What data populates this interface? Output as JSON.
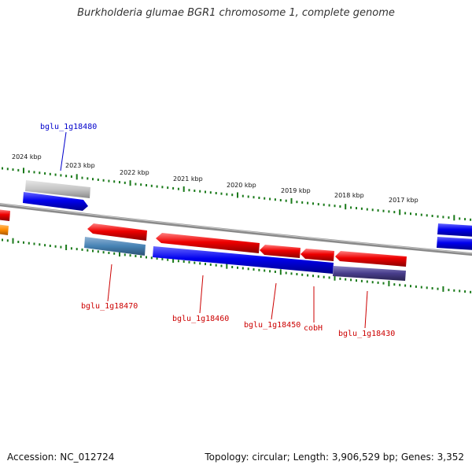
{
  "title": "Burkholderia glumae BGR1 chromosome 1, complete genome",
  "footer": {
    "accession": "Accession: NC_012724",
    "topology": "Topology: circular; Length: 3,906,529 bp; Genes: 3,352"
  },
  "scale_labels": [
    "2024 kbp",
    "2023 kbp",
    "2022 kbp",
    "2021 kbp",
    "2020 kbp",
    "2019 kbp",
    "2018 kbp",
    "2017 kbp"
  ],
  "gene_labels": [
    {
      "text": "bglu_1g18480",
      "color": "#0000cc"
    },
    {
      "text": "bglu_1g18470",
      "color": "#cc0000"
    },
    {
      "text": "bglu_1g18460",
      "color": "#cc0000"
    },
    {
      "text": "bglu_1g18450",
      "color": "#cc0000"
    },
    {
      "text": "cobH",
      "color": "#cc0000"
    },
    {
      "text": "bglu_1g18430",
      "color": "#cc0000"
    }
  ],
  "colors": {
    "forward_gene": "#0000ee",
    "reverse_gene": "#ee0000",
    "pseudo_gene": "#bbbbbb",
    "steelblue_gene": "#4682b4",
    "purple_gene": "#483d8b",
    "orange_gene": "#ff8c00",
    "backbone": "#808080",
    "tick": "#1a7a1a"
  }
}
